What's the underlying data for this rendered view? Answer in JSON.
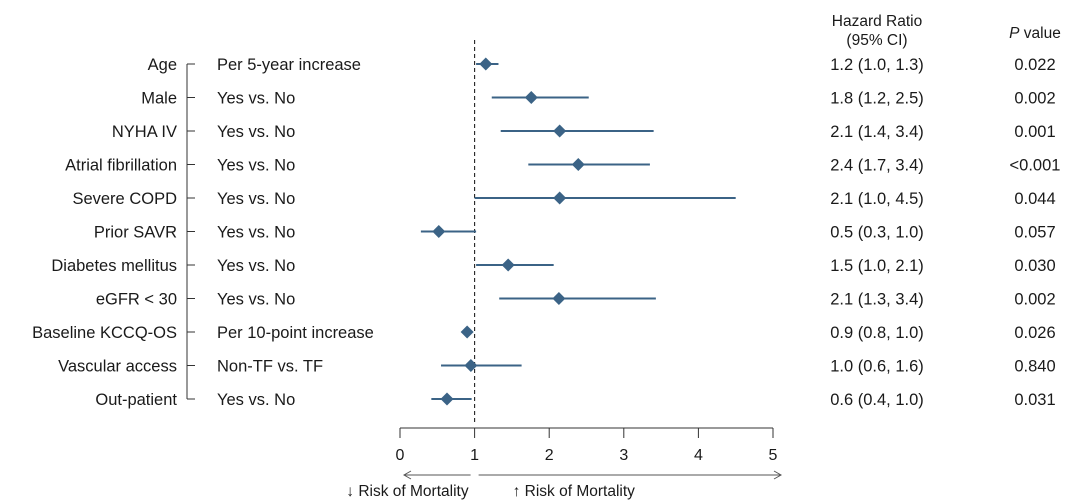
{
  "chart_data": {
    "type": "forest",
    "header_hr_line1": "Hazard Ratio",
    "header_hr_line2": "(95% CI)",
    "header_p_italic": "P",
    "header_p_rest": " value",
    "reference_line": 1,
    "xlim": [
      0,
      5
    ],
    "x_ticks": [
      "0",
      "1",
      "2",
      "3",
      "4",
      "5"
    ],
    "risk_lower_label": "↓ Risk of Mortality",
    "risk_higher_label": "↑ Risk of Mortality",
    "marker_color": "#3b6386",
    "rows": [
      {
        "variable": "Age",
        "comparison": "Per 5-year increase",
        "hr": 1.15,
        "lo": 1.02,
        "hi": 1.32,
        "hr_text": "1.2 (1.0, 1.3)",
        "p": "0.022"
      },
      {
        "variable": "Male",
        "comparison": "Yes vs. No",
        "hr": 1.76,
        "lo": 1.23,
        "hi": 2.53,
        "hr_text": "1.8 (1.2, 2.5)",
        "p": "0.002"
      },
      {
        "variable": "NYHA IV",
        "comparison": "Yes vs. No",
        "hr": 2.14,
        "lo": 1.35,
        "hi": 3.4,
        "hr_text": "2.1 (1.4, 3.4)",
        "p": "0.001"
      },
      {
        "variable": "Atrial fibrillation",
        "comparison": "Yes vs. No",
        "hr": 2.39,
        "lo": 1.72,
        "hi": 3.35,
        "hr_text": "2.4 (1.7, 3.4)",
        "p": "<0.001"
      },
      {
        "variable": "Severe COPD",
        "comparison": "Yes vs. No",
        "hr": 2.14,
        "lo": 1.0,
        "hi": 4.5,
        "hr_text": "2.1 (1.0, 4.5)",
        "p": "0.044"
      },
      {
        "variable": "Prior SAVR",
        "comparison": "Yes vs. No",
        "hr": 0.52,
        "lo": 0.28,
        "hi": 1.02,
        "hr_text": "0.5 (0.3, 1.0)",
        "p": "0.057"
      },
      {
        "variable": "Diabetes mellitus",
        "comparison": "Yes vs. No",
        "hr": 1.45,
        "lo": 1.02,
        "hi": 2.06,
        "hr_text": "1.5 (1.0, 2.1)",
        "p": "0.030"
      },
      {
        "variable": "eGFR < 30",
        "comparison": "Yes vs. No",
        "hr": 2.13,
        "lo": 1.33,
        "hi": 3.43,
        "hr_text": "2.1 (1.3, 3.4)",
        "p": "0.002"
      },
      {
        "variable": "Baseline KCCQ-OS",
        "comparison": "Per 10-point increase",
        "hr": 0.9,
        "lo": 0.85,
        "hi": 0.97,
        "hr_text": "0.9 (0.8, 1.0)",
        "p": "0.026"
      },
      {
        "variable": "Vascular access",
        "comparison": "Non-TF vs. TF",
        "hr": 0.95,
        "lo": 0.55,
        "hi": 1.63,
        "hr_text": "1.0 (0.6, 1.6)",
        "p": "0.840"
      },
      {
        "variable": "Out-patient",
        "comparison": "Yes vs. No",
        "hr": 0.63,
        "lo": 0.42,
        "hi": 0.96,
        "hr_text": "0.6 (0.4, 1.0)",
        "p": "0.031"
      }
    ]
  }
}
